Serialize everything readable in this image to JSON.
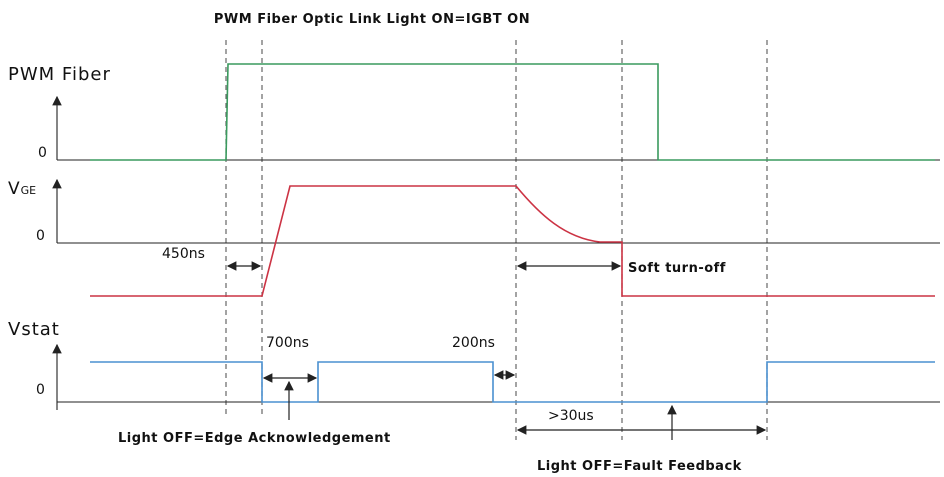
{
  "title": "PWM Fiber Optic Link Light ON=IGBT ON",
  "signals": [
    {
      "label": "PWM Fiber",
      "zero": "0"
    },
    {
      "label": {
        "main": "V",
        "sub": "GE"
      },
      "zero": "0"
    },
    {
      "label": "Vstat",
      "zero": "0"
    }
  ],
  "annotations": {
    "delay_on": "450ns",
    "soft_turn_off": "Soft turn-off",
    "ack_pulse": "700ns",
    "fault_delay": "200ns",
    "fault_duration": ">30us",
    "edge_ack": "Light OFF=Edge Acknowledgement",
    "fault_feedback": "Light OFF=Fault Feedback"
  }
}
